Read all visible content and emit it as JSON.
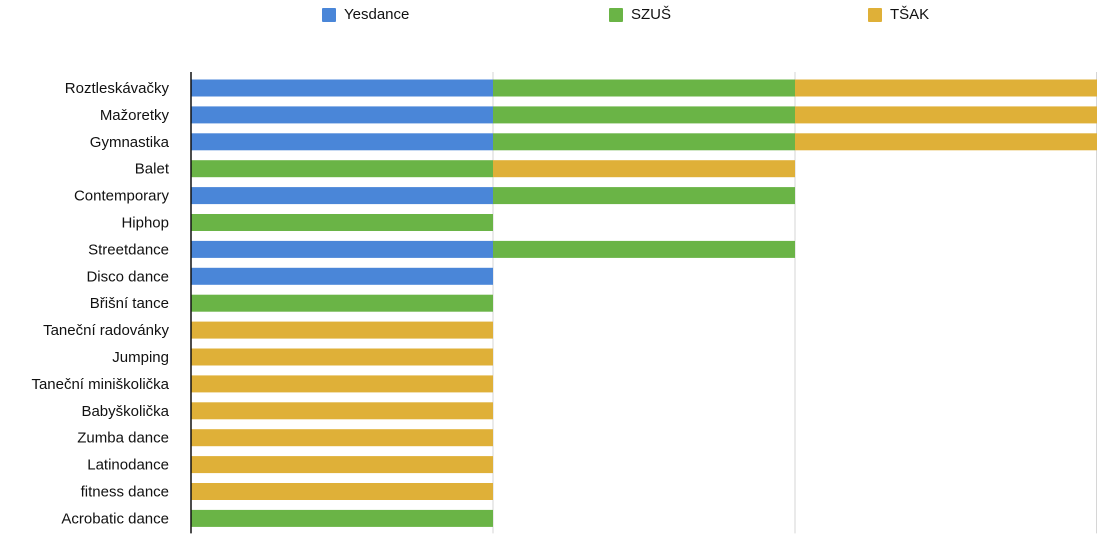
{
  "chart_data": {
    "type": "bar",
    "orientation": "horizontal",
    "stacked": true,
    "title": "",
    "xlabel": "",
    "ylabel": "",
    "xlim": [
      0,
      3
    ],
    "grid": true,
    "legend": {
      "placement": "top",
      "entries": [
        "Yesdance",
        "SZUŠ",
        "TŠAK"
      ]
    },
    "colors": {
      "Yesdance": "#4a86d8",
      "SZUŠ": "#6ab446",
      "TŠAK": "#dfb038"
    },
    "categories": [
      "Roztleskávačky",
      "Mažoretky",
      "Gymnastika",
      "Balet",
      "Contemporary",
      "Hiphop",
      "Streetdance",
      "Disco dance",
      "Břišní tance",
      "Taneční radovánky",
      "Jumping",
      "Taneční miniškolička",
      "Babyškolička",
      "Zumba dance",
      "Latinodance",
      "fitness dance",
      "Acrobatic dance"
    ],
    "series": [
      {
        "name": "Yesdance",
        "values": [
          1,
          1,
          1,
          0,
          1,
          0,
          1,
          1,
          0,
          0,
          0,
          0,
          0,
          0,
          0,
          0,
          0
        ]
      },
      {
        "name": "SZUŠ",
        "values": [
          1,
          1,
          1,
          1,
          1,
          1,
          1,
          0,
          1,
          0,
          0,
          0,
          0,
          0,
          0,
          0,
          1
        ]
      },
      {
        "name": "TŠAK",
        "values": [
          1,
          1,
          1,
          1,
          0,
          0,
          0,
          0,
          0,
          1,
          1,
          1,
          1,
          1,
          1,
          1,
          0
        ]
      }
    ]
  }
}
